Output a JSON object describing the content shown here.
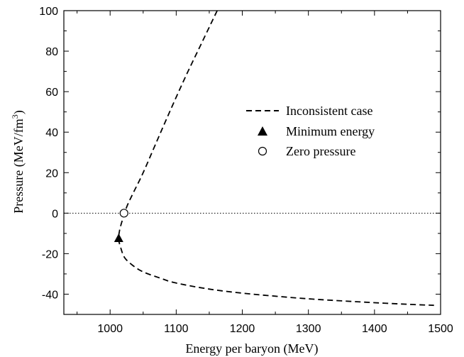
{
  "chart_data": {
    "type": "line",
    "title": "",
    "xlabel": "Energy per baryon (MeV)",
    "ylabel": "Pressure (MeV/fm",
    "ylabel_superscript": "3",
    "ylabel_suffix": ")",
    "xlim": [
      930,
      1500
    ],
    "ylim": [
      -50,
      100
    ],
    "xticks": [
      1000,
      1100,
      1200,
      1300,
      1400,
      1500
    ],
    "yticks": [
      -40,
      -20,
      0,
      20,
      40,
      60,
      80,
      100
    ],
    "xtick_labels": [
      "1000",
      "1100",
      "1200",
      "1300",
      "1400",
      "1500"
    ],
    "ytick_labels": [
      "-40",
      "-20",
      "0",
      "20",
      "40",
      "60",
      "80",
      "100"
    ],
    "grid": false,
    "legend_position": "center-right",
    "reference_line": {
      "y": 0,
      "style": "dotted"
    },
    "series": [
      {
        "name": "Inconsistent case",
        "style": "dashed",
        "x": [
          1162,
          1140,
          1115,
          1090,
          1070,
          1050,
          1035,
          1025,
          1018,
          1014,
          1013,
          1016,
          1022,
          1035,
          1050,
          1075,
          1100,
          1150,
          1200,
          1250,
          1300,
          1350,
          1400,
          1450,
          1490
        ],
        "y": [
          100,
          85,
          68,
          50,
          35,
          20,
          10,
          3,
          -4,
          -9,
          -13,
          -17,
          -22,
          -26,
          -29,
          -32,
          -34.5,
          -37.5,
          -39.5,
          -41,
          -42.3,
          -43.3,
          -44.2,
          -45,
          -45.5
        ]
      }
    ],
    "markers": [
      {
        "name": "Minimum energy",
        "symbol": "filled-triangle",
        "x": 1013,
        "y": -12.5
      },
      {
        "name": "Zero pressure",
        "symbol": "open-circle",
        "x": 1021,
        "y": 0
      }
    ]
  }
}
